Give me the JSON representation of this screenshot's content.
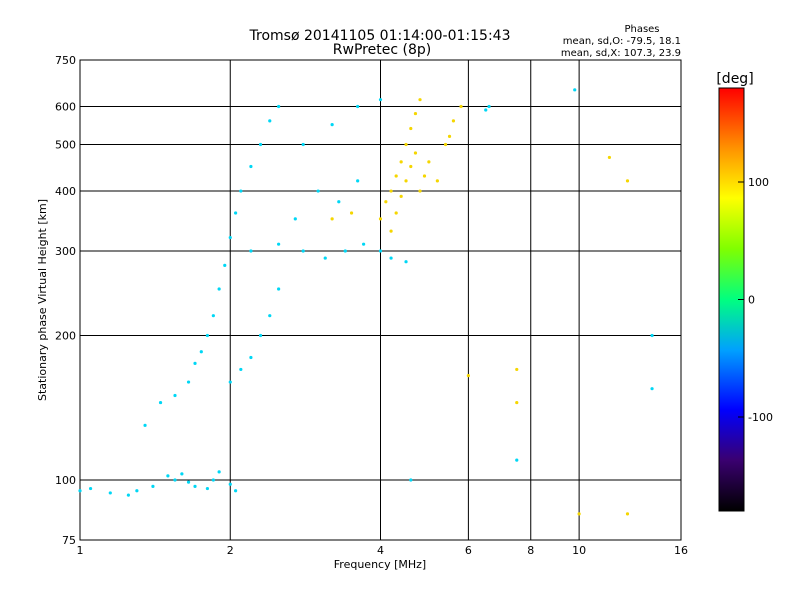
{
  "chart_data": {
    "type": "scatter",
    "title": "Tromsø 20141105 01:14:00-01:15:43",
    "subtitle": "RwPretec (8p)",
    "xlabel": "Frequency [MHz]",
    "ylabel": "Stationary phase Virtual Height [km]",
    "x_scale": "log",
    "y_scale": "log",
    "xlim": [
      1,
      16
    ],
    "ylim": [
      75,
      750
    ],
    "x_ticks": [
      "1",
      "2",
      "4",
      "6",
      "8",
      "10",
      "16"
    ],
    "x_tick_values": [
      1,
      2,
      4,
      6,
      8,
      10,
      16
    ],
    "y_ticks": [
      "75",
      "100",
      "200",
      "300",
      "400",
      "500",
      "600",
      "750"
    ],
    "y_tick_values": [
      75,
      100,
      200,
      300,
      400,
      500,
      600,
      750
    ],
    "x_grid_values": [
      2,
      4,
      6,
      8,
      10
    ],
    "y_grid_values": [
      100,
      200,
      300,
      400,
      500,
      600
    ],
    "grid": true,
    "legend": {
      "title": "Phases",
      "lines": [
        "mean, sd,O: -79.5, 18.1",
        "mean, sd,X: 107.3, 23.9"
      ],
      "placement": "top-right"
    },
    "colorbar": {
      "label": "[deg]",
      "ticks": [
        "100",
        "0",
        "-100"
      ],
      "tick_values": [
        100,
        0,
        -100
      ],
      "range": [
        -180,
        180
      ]
    },
    "series": [
      {
        "name": "O",
        "phase": -79.5,
        "points": [
          {
            "x": 1.0,
            "y": 95
          },
          {
            "x": 1.05,
            "y": 96
          },
          {
            "x": 1.15,
            "y": 94
          },
          {
            "x": 1.25,
            "y": 93
          },
          {
            "x": 1.3,
            "y": 95
          },
          {
            "x": 1.4,
            "y": 97
          },
          {
            "x": 1.5,
            "y": 102
          },
          {
            "x": 1.55,
            "y": 100
          },
          {
            "x": 1.6,
            "y": 103
          },
          {
            "x": 1.65,
            "y": 99
          },
          {
            "x": 1.7,
            "y": 97
          },
          {
            "x": 1.8,
            "y": 96
          },
          {
            "x": 1.85,
            "y": 100
          },
          {
            "x": 1.9,
            "y": 104
          },
          {
            "x": 2.0,
            "y": 98
          },
          {
            "x": 2.05,
            "y": 95
          },
          {
            "x": 1.35,
            "y": 130
          },
          {
            "x": 1.45,
            "y": 145
          },
          {
            "x": 1.55,
            "y": 150
          },
          {
            "x": 1.65,
            "y": 160
          },
          {
            "x": 1.7,
            "y": 175
          },
          {
            "x": 1.75,
            "y": 185
          },
          {
            "x": 1.8,
            "y": 200
          },
          {
            "x": 1.85,
            "y": 220
          },
          {
            "x": 1.9,
            "y": 250
          },
          {
            "x": 1.95,
            "y": 280
          },
          {
            "x": 2.0,
            "y": 320
          },
          {
            "x": 2.05,
            "y": 360
          },
          {
            "x": 2.1,
            "y": 400
          },
          {
            "x": 2.2,
            "y": 450
          },
          {
            "x": 2.3,
            "y": 500
          },
          {
            "x": 2.4,
            "y": 560
          },
          {
            "x": 2.5,
            "y": 600
          },
          {
            "x": 2.2,
            "y": 300
          },
          {
            "x": 2.5,
            "y": 310
          },
          {
            "x": 2.8,
            "y": 300
          },
          {
            "x": 3.1,
            "y": 290
          },
          {
            "x": 3.4,
            "y": 300
          },
          {
            "x": 3.7,
            "y": 310
          },
          {
            "x": 4.0,
            "y": 300
          },
          {
            "x": 4.2,
            "y": 290
          },
          {
            "x": 4.5,
            "y": 285
          },
          {
            "x": 2.0,
            "y": 160
          },
          {
            "x": 2.1,
            "y": 170
          },
          {
            "x": 2.2,
            "y": 180
          },
          {
            "x": 2.3,
            "y": 200
          },
          {
            "x": 2.4,
            "y": 220
          },
          {
            "x": 2.5,
            "y": 250
          },
          {
            "x": 2.7,
            "y": 350
          },
          {
            "x": 3.0,
            "y": 400
          },
          {
            "x": 3.3,
            "y": 380
          },
          {
            "x": 3.6,
            "y": 420
          },
          {
            "x": 2.8,
            "y": 500
          },
          {
            "x": 3.2,
            "y": 550
          },
          {
            "x": 3.6,
            "y": 600
          },
          {
            "x": 4.0,
            "y": 620
          },
          {
            "x": 6.6,
            "y": 600
          },
          {
            "x": 6.5,
            "y": 590
          },
          {
            "x": 9.8,
            "y": 650
          },
          {
            "x": 14.0,
            "y": 200
          },
          {
            "x": 14.0,
            "y": 155
          },
          {
            "x": 4.6,
            "y": 100
          },
          {
            "x": 7.5,
            "y": 110
          }
        ]
      },
      {
        "name": "X",
        "phase": 107.3,
        "points": [
          {
            "x": 4.0,
            "y": 350
          },
          {
            "x": 4.1,
            "y": 380
          },
          {
            "x": 4.2,
            "y": 400
          },
          {
            "x": 4.3,
            "y": 430
          },
          {
            "x": 4.4,
            "y": 460
          },
          {
            "x": 4.5,
            "y": 500
          },
          {
            "x": 4.6,
            "y": 540
          },
          {
            "x": 4.7,
            "y": 580
          },
          {
            "x": 4.8,
            "y": 620
          },
          {
            "x": 4.6,
            "y": 450
          },
          {
            "x": 4.5,
            "y": 420
          },
          {
            "x": 4.4,
            "y": 390
          },
          {
            "x": 4.7,
            "y": 480
          },
          {
            "x": 4.8,
            "y": 400
          },
          {
            "x": 4.9,
            "y": 430
          },
          {
            "x": 5.0,
            "y": 460
          },
          {
            "x": 5.5,
            "y": 520
          },
          {
            "x": 5.6,
            "y": 560
          },
          {
            "x": 5.8,
            "y": 600
          },
          {
            "x": 3.2,
            "y": 350
          },
          {
            "x": 3.5,
            "y": 360
          },
          {
            "x": 4.2,
            "y": 330
          },
          {
            "x": 4.3,
            "y": 360
          },
          {
            "x": 11.5,
            "y": 470
          },
          {
            "x": 12.5,
            "y": 420
          },
          {
            "x": 12.5,
            "y": 85
          },
          {
            "x": 10.0,
            "y": 85
          },
          {
            "x": 7.5,
            "y": 170
          },
          {
            "x": 7.5,
            "y": 145
          },
          {
            "x": 6.0,
            "y": 165
          },
          {
            "x": 5.2,
            "y": 420
          },
          {
            "x": 5.4,
            "y": 500
          }
        ]
      }
    ]
  }
}
